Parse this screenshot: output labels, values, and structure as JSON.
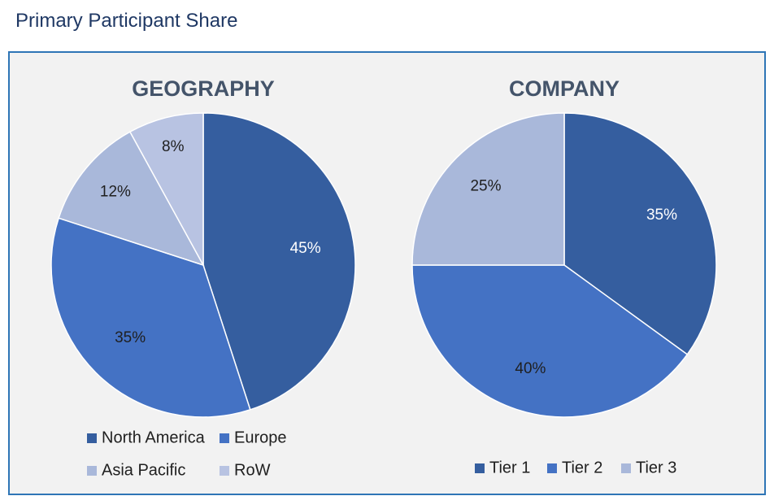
{
  "page": {
    "title": "Primary Participant Share"
  },
  "chart_data": [
    {
      "type": "pie",
      "title": "GEOGRAPHY",
      "categories": [
        "North America",
        "Europe",
        "Asia Pacific",
        "RoW"
      ],
      "values": [
        45,
        35,
        12,
        8
      ],
      "labels": [
        "45%",
        "35%",
        "12%",
        "8%"
      ],
      "colors": [
        "#355e9f",
        "#4472c4",
        "#a9b8da",
        "#b8c3e2"
      ],
      "label_colors": [
        "#ffffff",
        "#1f1f1f",
        "#1f1f1f",
        "#1f1f1f"
      ],
      "start_angle_deg": 0,
      "direction": "clockwise",
      "legend_position": "bottom"
    },
    {
      "type": "pie",
      "title": "COMPANY",
      "categories": [
        "Tier 1",
        "Tier 2",
        "Tier 3"
      ],
      "values": [
        35,
        40,
        25
      ],
      "labels": [
        "35%",
        "40%",
        "25%"
      ],
      "colors": [
        "#355e9f",
        "#4472c4",
        "#a9b8da"
      ],
      "label_colors": [
        "#ffffff",
        "#1f1f1f",
        "#1f1f1f"
      ],
      "start_angle_deg": 0,
      "direction": "clockwise",
      "legend_position": "bottom"
    }
  ]
}
